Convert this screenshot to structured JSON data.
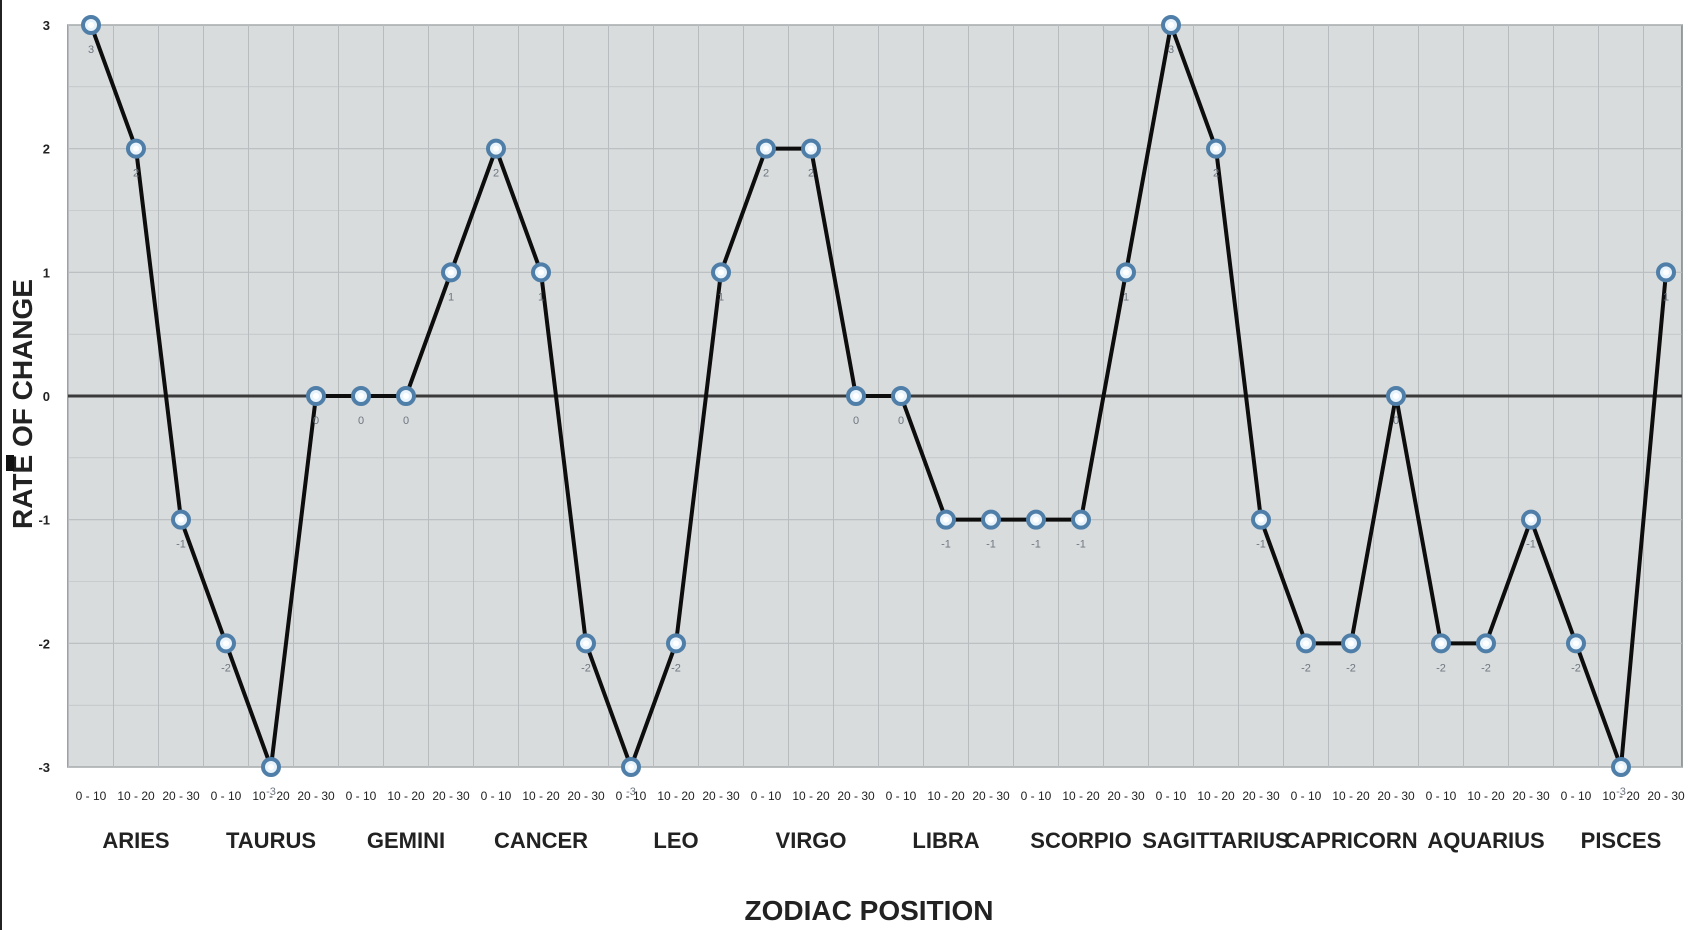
{
  "chart_data": {
    "type": "line",
    "xlabel": "ZODIAC POSITION",
    "ylabel": "RATE OF CHANGE",
    "ylim": [
      -3,
      3
    ],
    "yticks": [
      "3",
      "2",
      "1",
      "0",
      "-1",
      "-2",
      "-3"
    ],
    "grid": true,
    "categories": [
      "0 - 10",
      "10 - 20",
      "20 - 30",
      "0 - 10",
      "10 - 20",
      "20 - 30",
      "0 - 10",
      "10 - 20",
      "20 - 30",
      "0 - 10",
      "10 - 20",
      "20 - 30",
      "0 - 10",
      "10 - 20",
      "20 - 30",
      "0 - 10",
      "10 - 20",
      "20 - 30",
      "0 - 10",
      "10 - 20",
      "20 - 30",
      "0 - 10",
      "10 - 20",
      "20 - 30",
      "0 - 10",
      "10 - 20",
      "20 - 30",
      "0 - 10",
      "10 - 20",
      "20 - 30",
      "0 - 10",
      "10 - 20",
      "20 - 30",
      "0 - 10",
      "10 - 20",
      "20 - 30"
    ],
    "groups": [
      "ARIES",
      "TAURUS",
      "GEMINI",
      "CANCER",
      "LEO",
      "VIRGO",
      "LIBRA",
      "SCORPIO",
      "SAGITTARIUS",
      "CAPRICORN",
      "AQUARIUS",
      "PISCES"
    ],
    "series": [
      {
        "values": [
          3,
          2,
          -1,
          -2,
          -3,
          0,
          0,
          0,
          1,
          2,
          1,
          -2,
          -3,
          -2,
          1,
          2,
          2,
          0,
          0,
          -1,
          -1,
          -1,
          -1,
          1,
          3,
          2,
          -1,
          -2,
          -2,
          0,
          -2,
          -2,
          -1,
          -2,
          -3,
          1
        ],
        "point_labels": [
          "3",
          "2",
          "-1",
          "-2",
          "-3",
          "0",
          "0",
          "0",
          "1",
          "2",
          "1",
          "-2",
          "-3",
          "-2",
          "1",
          "2",
          "2",
          "0",
          "0",
          "-1",
          "-1",
          "-1",
          "-1",
          "1",
          "3",
          "2",
          "-1",
          "-2",
          "-2",
          "0",
          "-2",
          "-2",
          "-1",
          "-2",
          "-3",
          "1"
        ]
      }
    ],
    "colors": {
      "plot_background": "#d9dcdd",
      "grid": "#b8bcbe",
      "line": "#0d0d0d",
      "marker_fill": "#e8f3fb",
      "marker_stroke": "#4f7fa8",
      "zero_line": "#3a3a3a"
    }
  }
}
